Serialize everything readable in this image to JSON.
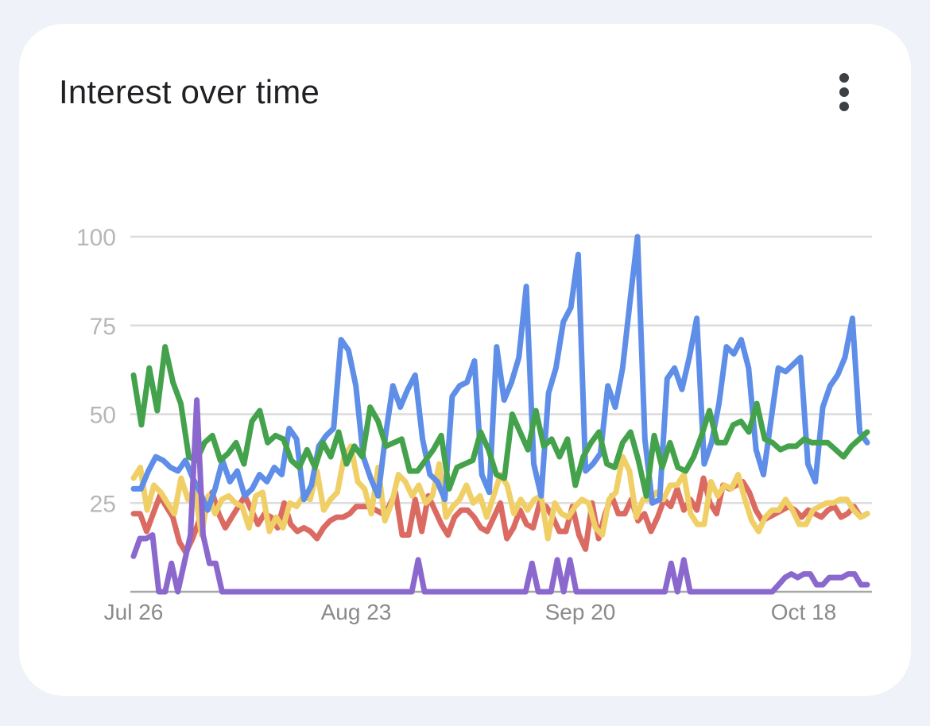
{
  "card": {
    "title": "Interest over time",
    "menu_icon": "more-vert-icon"
  },
  "chart_data": {
    "type": "line",
    "title": "Interest over time",
    "xlabel": "",
    "ylabel": "",
    "ylim": [
      0,
      100
    ],
    "yticks": [
      "100",
      "75",
      "50",
      "25"
    ],
    "xtick_labels": [
      "Jul 26",
      "Aug 23",
      "Sep 20",
      "Oct 18"
    ],
    "grid": true,
    "legend": "none",
    "series": [
      {
        "color": "#db6b62",
        "values": [
          22,
          22,
          17,
          22,
          27,
          24,
          21,
          14,
          11,
          15,
          20,
          24,
          28,
          22,
          18,
          21,
          24,
          27,
          23,
          19,
          22,
          21,
          18,
          25,
          19,
          17,
          18,
          17,
          15,
          18,
          20,
          21,
          21,
          22,
          24,
          24,
          24,
          23,
          22,
          24,
          28,
          16,
          16,
          26,
          17,
          27,
          23,
          19,
          16,
          21,
          23,
          23,
          21,
          18,
          17,
          21,
          25,
          15,
          18,
          23,
          19,
          18,
          25,
          24,
          21,
          17,
          17,
          24,
          16,
          12,
          25,
          15,
          22,
          27,
          22,
          22,
          26,
          20,
          22,
          17,
          21,
          26,
          24,
          29,
          23,
          26,
          23,
          32,
          25,
          22,
          30,
          29,
          30,
          31,
          28,
          23,
          20,
          21,
          22,
          23,
          24,
          23,
          21,
          23,
          22,
          21,
          23,
          24,
          21,
          22,
          24,
          21,
          22
        ]
      },
      {
        "color": "#f0cf66",
        "values": [
          32,
          35,
          23,
          30,
          28,
          25,
          22,
          32,
          26,
          29,
          16,
          27,
          22,
          26,
          27,
          25,
          24,
          18,
          27,
          28,
          17,
          21,
          18,
          25,
          24,
          27,
          26,
          34,
          23,
          26,
          28,
          38,
          41,
          31,
          29,
          22,
          35,
          20,
          25,
          33,
          31,
          27,
          30,
          25,
          27,
          36,
          21,
          24,
          26,
          30,
          25,
          27,
          21,
          27,
          33,
          30,
          22,
          26,
          23,
          26,
          27,
          15,
          25,
          22,
          21,
          24,
          26,
          25,
          18,
          16,
          26,
          28,
          38,
          34,
          21,
          26,
          26,
          28,
          26,
          30,
          30,
          33,
          22,
          19,
          19,
          31,
          27,
          30,
          29,
          33,
          26,
          20,
          17,
          21,
          23,
          23,
          26,
          23,
          19,
          19,
          23,
          24,
          25,
          25,
          26,
          26,
          23,
          21,
          22
        ]
      },
      {
        "color": "#5e8ee8",
        "values": [
          29,
          29,
          34,
          38,
          37,
          35,
          34,
          37,
          32,
          28,
          23,
          29,
          37,
          31,
          34,
          27,
          29,
          33,
          31,
          35,
          33,
          46,
          43,
          26,
          30,
          41,
          44,
          46,
          71,
          68,
          58,
          38,
          32,
          27,
          44,
          58,
          52,
          57,
          61,
          43,
          33,
          31,
          26,
          55,
          58,
          59,
          65,
          33,
          28,
          69,
          54,
          59,
          66,
          86,
          36,
          27,
          56,
          63,
          76,
          80,
          95,
          34,
          36,
          39,
          58,
          52,
          63,
          82,
          100,
          43,
          25,
          26,
          60,
          63,
          57,
          66,
          77,
          36,
          42,
          53,
          69,
          67,
          71,
          63,
          40,
          33,
          48,
          63,
          62,
          64,
          66,
          36,
          31,
          52,
          58,
          61,
          66,
          77,
          45,
          42
        ]
      },
      {
        "color": "#45a24c",
        "values": [
          61,
          47,
          63,
          51,
          69,
          59,
          53,
          38,
          37,
          42,
          44,
          37,
          39,
          42,
          36,
          48,
          51,
          42,
          44,
          43,
          37,
          35,
          40,
          35,
          42,
          38,
          45,
          36,
          41,
          38,
          52,
          48,
          41,
          42,
          43,
          34,
          34,
          37,
          40,
          44,
          29,
          35,
          36,
          37,
          45,
          40,
          33,
          32,
          50,
          45,
          40,
          51,
          41,
          43,
          38,
          43,
          30,
          38,
          42,
          45,
          36,
          35,
          42,
          45,
          37,
          27,
          44,
          35,
          42,
          35,
          34,
          38,
          44,
          51,
          42,
          42,
          47,
          48,
          45,
          53,
          43,
          42,
          40,
          41,
          41,
          43,
          42,
          42,
          42,
          40,
          38,
          41,
          43,
          45
        ]
      },
      {
        "color": "#8a68cd",
        "values": [
          10,
          15,
          15,
          16,
          0,
          0,
          8,
          0,
          8,
          16,
          54,
          16,
          8,
          8,
          0,
          0,
          0,
          0,
          0,
          0,
          0,
          0,
          0,
          0,
          0,
          0,
          0,
          0,
          0,
          0,
          0,
          0,
          0,
          0,
          0,
          0,
          0,
          0,
          0,
          0,
          0,
          0,
          0,
          0,
          0,
          9,
          0,
          0,
          0,
          0,
          0,
          0,
          0,
          0,
          0,
          0,
          0,
          0,
          0,
          0,
          0,
          0,
          0,
          8,
          0,
          0,
          0,
          9,
          0,
          9,
          0,
          0,
          0,
          0,
          0,
          0,
          0,
          0,
          0,
          0,
          0,
          0,
          0,
          0,
          0,
          8,
          0,
          9,
          0,
          0,
          0,
          0,
          0,
          0,
          0,
          0,
          0,
          0,
          0,
          0,
          0,
          0,
          2,
          4,
          5,
          4,
          5,
          5,
          2,
          2,
          4,
          4,
          4,
          5,
          5,
          2,
          2
        ]
      }
    ]
  }
}
